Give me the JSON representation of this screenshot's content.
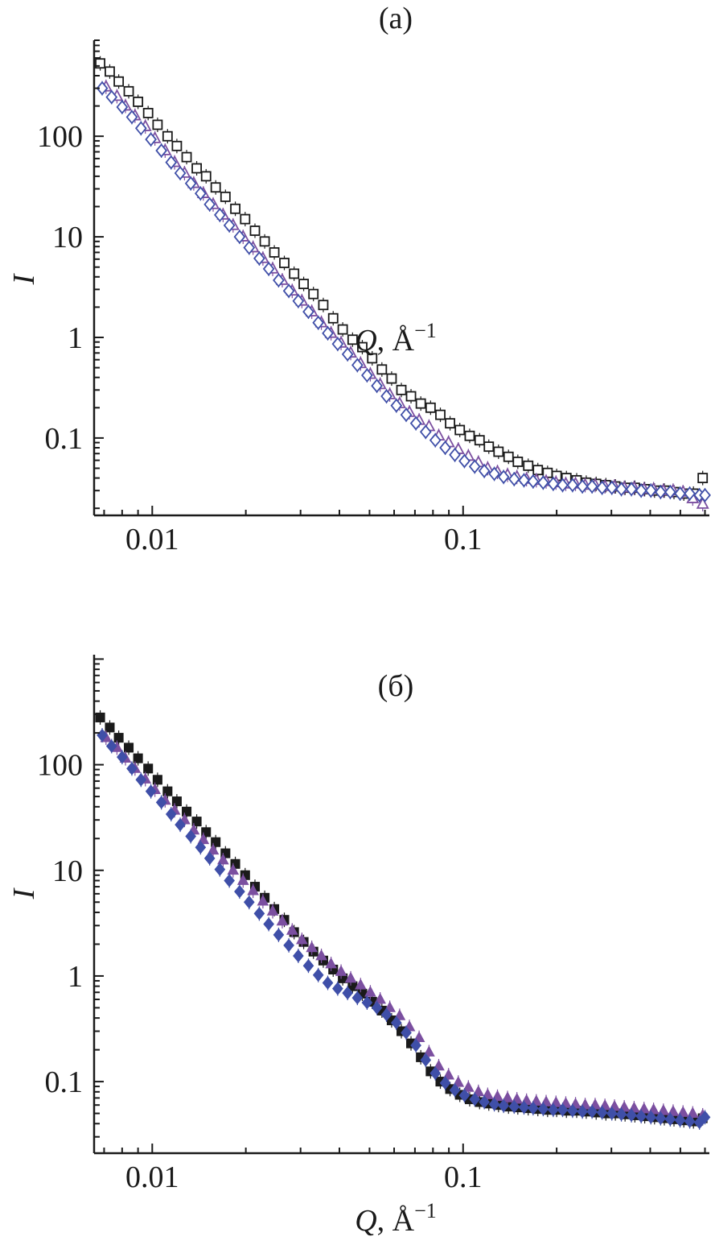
{
  "colors": {
    "black": "#1a1a1a",
    "purple": "#7b4fa0",
    "blue": "#3f4fa8"
  },
  "chart_data": [
    {
      "type": "scatter",
      "panel_label": "(а)",
      "xlabel_italic": "Q",
      "xlabel_unit": ", Å",
      "xlabel_sup": "−1",
      "ylabel": "I",
      "xscale": "log",
      "yscale": "log",
      "xlim": [
        0.0065,
        0.62
      ],
      "ylim": [
        0.017,
        900
      ],
      "x_ticks": [
        0.01,
        0.1
      ],
      "x_tick_labels": [
        "0.01",
        "0.1"
      ],
      "y_ticks": [
        0.1,
        1,
        10,
        100
      ],
      "y_tick_labels": [
        "0.1",
        "1",
        "10",
        "100"
      ],
      "grid": false,
      "series": [
        {
          "marker": "open-square",
          "color": "#1a1a1a",
          "x": [
            0.0068,
            0.0073,
            0.0078,
            0.0084,
            0.009,
            0.0097,
            0.0104,
            0.0112,
            0.012,
            0.0129,
            0.0139,
            0.0149,
            0.016,
            0.0172,
            0.0185,
            0.0199,
            0.0214,
            0.023,
            0.0247,
            0.0266,
            0.0286,
            0.0307,
            0.033,
            0.0355,
            0.0382,
            0.041,
            0.0441,
            0.0474,
            0.051,
            0.0548,
            0.0589,
            0.0633,
            0.068,
            0.0731,
            0.0786,
            0.0845,
            0.0908,
            0.0976,
            0.105,
            0.113,
            0.121,
            0.13,
            0.14,
            0.15,
            0.162,
            0.174,
            0.187,
            0.2,
            0.215,
            0.232,
            0.249,
            0.268,
            0.288,
            0.309,
            0.332,
            0.357,
            0.384,
            0.413,
            0.444,
            0.477,
            0.513,
            0.551,
            0.59
          ],
          "y": [
            530,
            440,
            350,
            280,
            220,
            170,
            130,
            100,
            80,
            62,
            48,
            40,
            31,
            25,
            19,
            15,
            11.5,
            9,
            7,
            5.5,
            4.3,
            3.4,
            2.7,
            2.1,
            1.55,
            1.2,
            0.95,
            0.8,
            0.62,
            0.48,
            0.39,
            0.3,
            0.26,
            0.22,
            0.2,
            0.17,
            0.14,
            0.12,
            0.105,
            0.095,
            0.082,
            0.073,
            0.065,
            0.058,
            0.053,
            0.048,
            0.045,
            0.042,
            0.04,
            0.038,
            0.036,
            0.035,
            0.034,
            0.033,
            0.032,
            0.032,
            0.031,
            0.03,
            0.03,
            0.029,
            0.028,
            0.028,
            0.04
          ]
        },
        {
          "marker": "open-triangle",
          "color": "#7b4fa0",
          "x": [
            0.0071,
            0.0077,
            0.0082,
            0.0088,
            0.0095,
            0.0102,
            0.011,
            0.0118,
            0.0127,
            0.0136,
            0.0146,
            0.0157,
            0.0169,
            0.0182,
            0.0196,
            0.0211,
            0.0227,
            0.0244,
            0.0262,
            0.0282,
            0.0303,
            0.0326,
            0.035,
            0.0376,
            0.0405,
            0.0435,
            0.0468,
            0.0503,
            0.0541,
            0.0581,
            0.0625,
            0.0672,
            0.0722,
            0.0777,
            0.0835,
            0.0898,
            0.0965,
            0.104,
            0.112,
            0.12,
            0.129,
            0.139,
            0.149,
            0.16,
            0.172,
            0.185,
            0.199,
            0.214,
            0.23,
            0.247,
            0.266,
            0.286,
            0.307,
            0.33,
            0.355,
            0.382,
            0.41,
            0.441,
            0.474,
            0.51,
            0.548,
            0.59
          ],
          "y": [
            310,
            250,
            200,
            160,
            125,
            95,
            72,
            55,
            43,
            34,
            27,
            21,
            16.5,
            13,
            10,
            7.8,
            6.1,
            4.8,
            3.7,
            2.9,
            2.3,
            1.8,
            1.4,
            1.1,
            0.88,
            0.7,
            0.55,
            0.43,
            0.34,
            0.27,
            0.22,
            0.18,
            0.15,
            0.13,
            0.105,
            0.09,
            0.077,
            0.066,
            0.057,
            0.05,
            0.046,
            0.043,
            0.041,
            0.039,
            0.038,
            0.037,
            0.036,
            0.035,
            0.035,
            0.034,
            0.034,
            0.033,
            0.033,
            0.032,
            0.032,
            0.031,
            0.031,
            0.03,
            0.03,
            0.029,
            0.025,
            0.022
          ]
        },
        {
          "marker": "open-diamond",
          "color": "#3f4fa8",
          "x": [
            0.0069,
            0.0074,
            0.008,
            0.0086,
            0.0092,
            0.0099,
            0.0107,
            0.0115,
            0.0123,
            0.0133,
            0.0143,
            0.0153,
            0.0165,
            0.0177,
            0.0191,
            0.0205,
            0.0221,
            0.0237,
            0.0255,
            0.0275,
            0.0295,
            0.0318,
            0.0342,
            0.0367,
            0.0395,
            0.0425,
            0.0457,
            0.0491,
            0.0528,
            0.0567,
            0.061,
            0.0656,
            0.0705,
            0.0758,
            0.0814,
            0.0876,
            0.0941,
            0.101,
            0.109,
            0.117,
            0.126,
            0.135,
            0.146,
            0.157,
            0.168,
            0.181,
            0.195,
            0.209,
            0.225,
            0.242,
            0.26,
            0.28,
            0.301,
            0.323,
            0.348,
            0.374,
            0.402,
            0.432,
            0.464,
            0.499,
            0.536,
            0.576,
            0.6
          ],
          "y": [
            300,
            245,
            195,
            155,
            120,
            93,
            72,
            55,
            43,
            34,
            27,
            21,
            16.5,
            13,
            10,
            7.8,
            6.1,
            4.8,
            3.7,
            2.9,
            2.3,
            1.8,
            1.4,
            1.1,
            0.86,
            0.68,
            0.53,
            0.42,
            0.33,
            0.26,
            0.21,
            0.17,
            0.14,
            0.115,
            0.095,
            0.08,
            0.068,
            0.059,
            0.052,
            0.047,
            0.044,
            0.041,
            0.039,
            0.038,
            0.037,
            0.036,
            0.035,
            0.034,
            0.034,
            0.033,
            0.033,
            0.032,
            0.032,
            0.031,
            0.031,
            0.03,
            0.03,
            0.029,
            0.029,
            0.028,
            0.028,
            0.027,
            0.027
          ]
        }
      ]
    },
    {
      "type": "scatter",
      "panel_label": "(б)",
      "xlabel_italic": "Q",
      "xlabel_unit": ", Å",
      "xlabel_sup": "−1",
      "ylabel": "I",
      "xscale": "log",
      "yscale": "log",
      "xlim": [
        0.0065,
        0.62
      ],
      "ylim": [
        0.021,
        1100
      ],
      "x_ticks": [
        0.01,
        0.1
      ],
      "x_tick_labels": [
        "0.01",
        "0.1"
      ],
      "y_ticks": [
        0.1,
        1,
        10,
        100
      ],
      "y_tick_labels": [
        "0.1",
        "1",
        "10",
        "100"
      ],
      "grid": false,
      "series": [
        {
          "marker": "filled-square",
          "color": "#1a1a1a",
          "x": [
            0.0068,
            0.0073,
            0.0078,
            0.0084,
            0.009,
            0.0097,
            0.0104,
            0.0112,
            0.012,
            0.0129,
            0.0139,
            0.0149,
            0.016,
            0.0172,
            0.0185,
            0.0199,
            0.0214,
            0.023,
            0.0247,
            0.0266,
            0.0286,
            0.0307,
            0.033,
            0.0355,
            0.0382,
            0.041,
            0.0441,
            0.0474,
            0.051,
            0.0548,
            0.0589,
            0.0633,
            0.068,
            0.0731,
            0.0786,
            0.0845,
            0.0908,
            0.0976,
            0.105,
            0.113,
            0.121,
            0.13,
            0.14,
            0.15,
            0.162,
            0.174,
            0.187,
            0.2,
            0.215,
            0.232,
            0.249,
            0.268,
            0.288,
            0.309,
            0.332,
            0.357,
            0.384,
            0.413,
            0.444,
            0.477,
            0.513,
            0.551,
            0.59
          ],
          "y": [
            280,
            225,
            180,
            145,
            115,
            92,
            72,
            56,
            45,
            36,
            29,
            23,
            18.5,
            14.5,
            11.5,
            9,
            7,
            5.5,
            4.3,
            3.4,
            2.6,
            2.1,
            1.7,
            1.4,
            1.15,
            0.95,
            0.8,
            0.68,
            0.57,
            0.47,
            0.38,
            0.3,
            0.23,
            0.17,
            0.125,
            0.1,
            0.085,
            0.075,
            0.068,
            0.064,
            0.062,
            0.06,
            0.058,
            0.057,
            0.056,
            0.055,
            0.054,
            0.054,
            0.053,
            0.053,
            0.052,
            0.051,
            0.05,
            0.05,
            0.049,
            0.048,
            0.047,
            0.046,
            0.045,
            0.044,
            0.043,
            0.042,
            0.045
          ]
        },
        {
          "marker": "filled-triangle",
          "color": "#7b4fa0",
          "x": [
            0.0071,
            0.0077,
            0.0082,
            0.0088,
            0.0095,
            0.0102,
            0.011,
            0.0118,
            0.0127,
            0.0136,
            0.0146,
            0.0157,
            0.0169,
            0.0182,
            0.0196,
            0.0211,
            0.0227,
            0.0244,
            0.0262,
            0.0282,
            0.0303,
            0.0326,
            0.035,
            0.0376,
            0.0405,
            0.0435,
            0.0468,
            0.0503,
            0.0541,
            0.0581,
            0.0625,
            0.0672,
            0.0722,
            0.0777,
            0.0835,
            0.0898,
            0.0965,
            0.104,
            0.112,
            0.12,
            0.129,
            0.139,
            0.149,
            0.16,
            0.172,
            0.185,
            0.199,
            0.214,
            0.23,
            0.247,
            0.266,
            0.286,
            0.307,
            0.33,
            0.355,
            0.382,
            0.41,
            0.441,
            0.474,
            0.51,
            0.548,
            0.59
          ],
          "y": [
            180,
            145,
            115,
            92,
            73,
            58,
            46,
            37,
            30,
            24,
            19.5,
            15.5,
            12.5,
            10,
            8,
            6.4,
            5.1,
            4.1,
            3.3,
            2.7,
            2.2,
            1.85,
            1.55,
            1.3,
            1.1,
            0.95,
            0.82,
            0.7,
            0.6,
            0.5,
            0.42,
            0.33,
            0.26,
            0.19,
            0.14,
            0.115,
            0.098,
            0.088,
            0.08,
            0.075,
            0.072,
            0.07,
            0.068,
            0.066,
            0.065,
            0.064,
            0.063,
            0.062,
            0.061,
            0.06,
            0.06,
            0.059,
            0.058,
            0.057,
            0.056,
            0.055,
            0.054,
            0.053,
            0.052,
            0.051,
            0.05,
            0.048
          ]
        },
        {
          "marker": "filled-diamond",
          "color": "#3f4fa8",
          "x": [
            0.0069,
            0.0074,
            0.008,
            0.0086,
            0.0092,
            0.0099,
            0.0107,
            0.0115,
            0.0123,
            0.0133,
            0.0143,
            0.0153,
            0.0165,
            0.0177,
            0.0191,
            0.0205,
            0.0221,
            0.0237,
            0.0255,
            0.0275,
            0.0295,
            0.0318,
            0.0342,
            0.0367,
            0.0395,
            0.0425,
            0.0457,
            0.0491,
            0.0528,
            0.0567,
            0.061,
            0.0656,
            0.0705,
            0.0758,
            0.0814,
            0.0876,
            0.0941,
            0.101,
            0.109,
            0.117,
            0.126,
            0.135,
            0.146,
            0.157,
            0.168,
            0.181,
            0.195,
            0.209,
            0.225,
            0.242,
            0.26,
            0.28,
            0.301,
            0.323,
            0.348,
            0.374,
            0.402,
            0.432,
            0.464,
            0.499,
            0.536,
            0.576,
            0.6
          ],
          "y": [
            190,
            150,
            118,
            92,
            72,
            56,
            44,
            34,
            27,
            21,
            16.5,
            13,
            10.2,
            8,
            6.3,
            5,
            3.9,
            3.1,
            2.45,
            1.95,
            1.55,
            1.25,
            1.02,
            0.86,
            0.76,
            0.69,
            0.62,
            0.56,
            0.5,
            0.43,
            0.36,
            0.29,
            0.22,
            0.16,
            0.12,
            0.097,
            0.083,
            0.074,
            0.068,
            0.064,
            0.061,
            0.059,
            0.058,
            0.057,
            0.056,
            0.055,
            0.054,
            0.054,
            0.053,
            0.052,
            0.052,
            0.051,
            0.05,
            0.049,
            0.048,
            0.047,
            0.046,
            0.045,
            0.044,
            0.043,
            0.042,
            0.041,
            0.046
          ]
        }
      ]
    }
  ]
}
